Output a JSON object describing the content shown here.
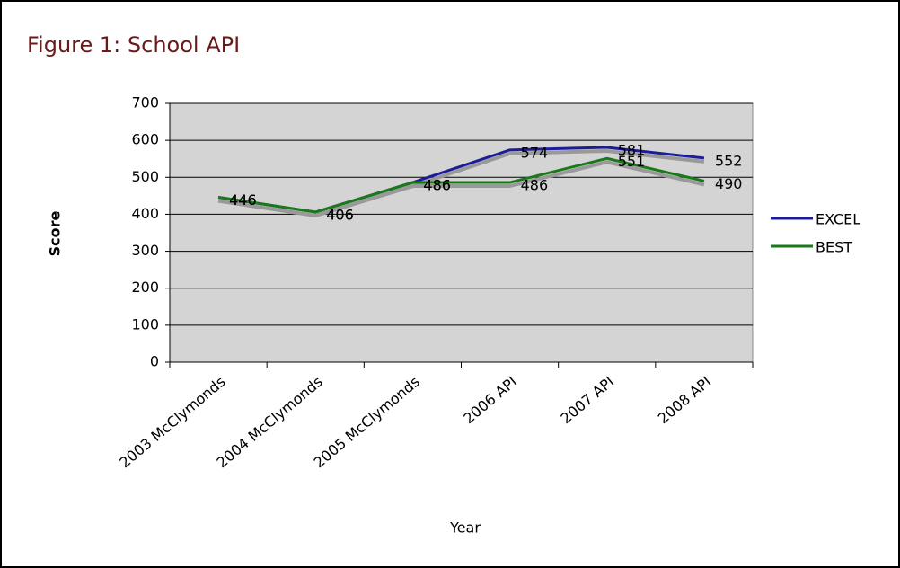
{
  "chart_data": {
    "type": "line",
    "title": "Figure 1: School API",
    "x_label": "Year",
    "y_label": "Score",
    "categories": [
      "2003 McClymonds",
      "2004 McClymonds",
      "2005 McClymonds",
      "2006 API",
      "2007 API",
      "2008 API"
    ],
    "series": [
      {
        "name": "EXCEL",
        "color": "#1c1c9a",
        "values": [
          446,
          406,
          486,
          574,
          581,
          552
        ]
      },
      {
        "name": "BEST",
        "color": "#1a7a1a",
        "values": [
          446,
          406,
          486,
          486,
          551,
          490
        ]
      }
    ],
    "ylim": [
      0,
      700
    ],
    "yticks": [
      0,
      100,
      200,
      300,
      400,
      500,
      600,
      700
    ],
    "grid": true,
    "legend": "right"
  }
}
